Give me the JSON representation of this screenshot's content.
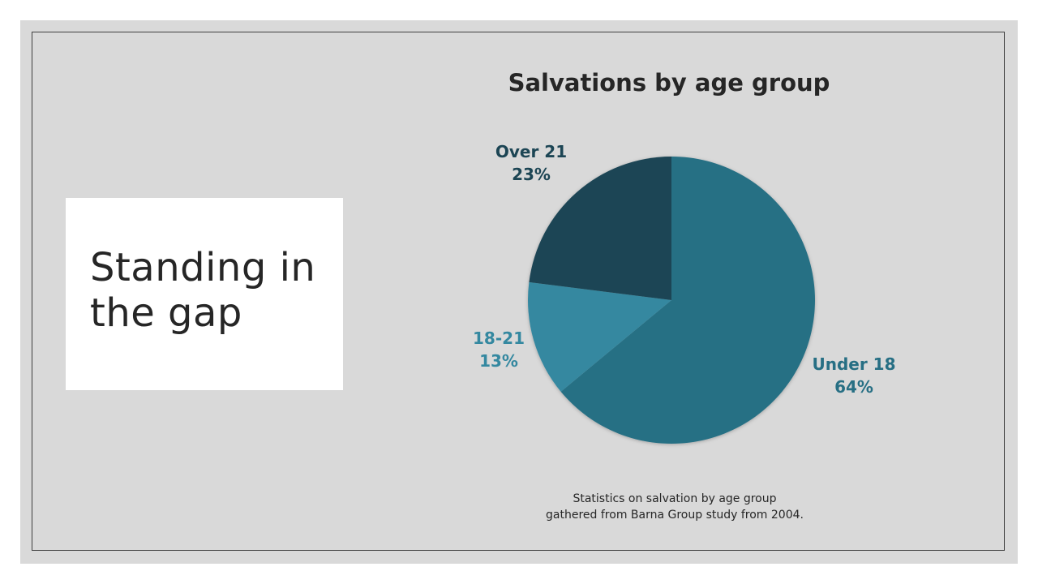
{
  "slide": {
    "title": "Standing in\nthe gap",
    "caption_line1": "Statistics on salvation by age group",
    "caption_line2": "gathered from Barna Group study from 2004."
  },
  "chart_data": {
    "type": "pie",
    "title": "Salvations by age group",
    "categories": [
      "Under 18",
      "18-21",
      "Over 21"
    ],
    "values": [
      64,
      13,
      23
    ],
    "value_labels": [
      "64%",
      "13%",
      "23%"
    ],
    "colors": [
      "#276f84",
      "#3488a0",
      "#1c4554"
    ]
  }
}
